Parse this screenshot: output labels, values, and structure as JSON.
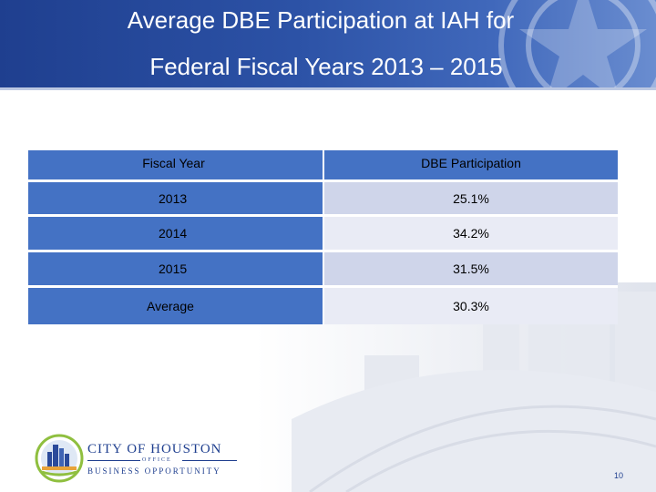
{
  "slide": {
    "title_line1": "Average DBE Participation at IAH for",
    "title_line2": "Federal Fiscal Years 2013 – 2015",
    "page_number": "10"
  },
  "table": {
    "headers": [
      "Fiscal Year",
      "DBE Participation"
    ],
    "rows": [
      {
        "year": "2013",
        "participation": "25.1%"
      },
      {
        "year": "2014",
        "participation": "34.2%"
      },
      {
        "year": "2015",
        "participation": "31.5%"
      },
      {
        "year": "Average",
        "participation": "30.3%"
      }
    ]
  },
  "logo": {
    "line1": "CITY OF HOUSTON",
    "line2": "OFFICE",
    "line3": "BUSINESS OPPORTUNITY"
  },
  "colors": {
    "header_band": "#2c52a6",
    "table_header": "#4472c4",
    "row_dark": "#cfd5ea",
    "row_light": "#e9ebf5"
  }
}
